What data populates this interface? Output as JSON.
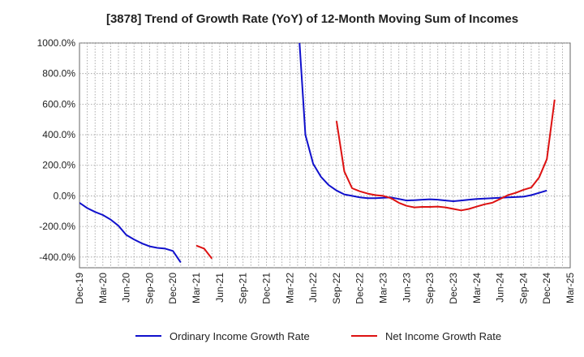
{
  "chart_data": {
    "type": "line",
    "title": "[3878]  Trend of Growth Rate (YoY) of 12-Month Moving Sum of Incomes",
    "xlabel": "",
    "ylabel": "",
    "ylim": [
      -470,
      1000
    ],
    "y_ticks": [
      {
        "value": 1000,
        "label": "1000.0%"
      },
      {
        "value": 800,
        "label": "800.0%"
      },
      {
        "value": 600,
        "label": "600.0%"
      },
      {
        "value": 400,
        "label": "400.0%"
      },
      {
        "value": 200,
        "label": "200.0%"
      },
      {
        "value": 0,
        "label": "0.0%"
      },
      {
        "value": -200,
        "label": "-200.0%"
      },
      {
        "value": -400,
        "label": "-400.0%"
      }
    ],
    "x_start": "Dec-19",
    "x_count": 64,
    "x_tick_labels": [
      "Dec-19",
      "Mar-20",
      "Jun-20",
      "Sep-20",
      "Dec-20",
      "Mar-21",
      "Jun-21",
      "Sep-21",
      "Dec-21",
      "Mar-22",
      "Jun-22",
      "Sep-22",
      "Dec-22",
      "Mar-23",
      "Jun-23",
      "Sep-23",
      "Dec-23",
      "Mar-24",
      "Jun-24",
      "Sep-24",
      "Dec-24",
      "Mar-25"
    ],
    "grid": true,
    "legend_position": "bottom",
    "series": [
      {
        "name": "Ordinary Income Growth Rate",
        "color": "#1010cc",
        "values": [
          -45,
          -80,
          -105,
          -125,
          -155,
          -195,
          -255,
          -285,
          -310,
          -330,
          -340,
          -345,
          -360,
          -435,
          null,
          null,
          null,
          null,
          null,
          null,
          null,
          null,
          null,
          null,
          null,
          null,
          null,
          null,
          1200,
          400,
          210,
          125,
          70,
          35,
          10,
          0,
          -10,
          -15,
          -15,
          -12,
          -10,
          -20,
          -30,
          -28,
          -25,
          -22,
          -25,
          -30,
          -35,
          -30,
          -25,
          -20,
          -18,
          -15,
          -12,
          -10,
          -8,
          -5,
          5,
          20,
          35,
          null,
          null,
          null
        ]
      },
      {
        "name": "Net Income Growth Rate",
        "color": "#dd1111",
        "values": [
          null,
          null,
          null,
          null,
          null,
          null,
          null,
          null,
          null,
          null,
          null,
          null,
          null,
          null,
          null,
          -325,
          -345,
          -410,
          null,
          null,
          null,
          null,
          null,
          null,
          null,
          null,
          null,
          null,
          null,
          null,
          null,
          null,
          null,
          490,
          160,
          50,
          30,
          15,
          5,
          0,
          -15,
          -45,
          -65,
          -75,
          -72,
          -72,
          -70,
          -75,
          -85,
          -95,
          -85,
          -70,
          -55,
          -45,
          -20,
          5,
          20,
          40,
          55,
          120,
          240,
          630,
          null,
          null
        ]
      }
    ]
  }
}
